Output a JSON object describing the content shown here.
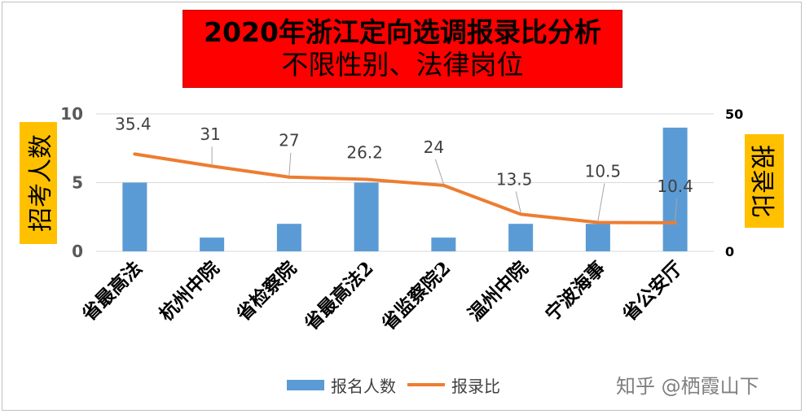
{
  "title_lines": [
    "2020年浙江定向选调报录比分析",
    "不限性别、法律岗位"
  ],
  "left_axis_title": "招考人数",
  "right_axis_title": "报录比",
  "watermark": "知乎 @栖霞山下",
  "colors": {
    "bar": "#5b9bd5",
    "line": "#ed7d31",
    "title_bg": "#ff0000",
    "axis_title_bg": "#ffc000"
  },
  "chart_data": {
    "type": "bar+line",
    "categories": [
      "省最高法",
      "杭州中院",
      "省检察院",
      "省最高法2",
      "省监察院2",
      "温州中院",
      "宁波海事",
      "省公安厅"
    ],
    "series": [
      {
        "name": "报名人数",
        "type": "bar",
        "axis": "left",
        "values": [
          5,
          1,
          2,
          5,
          1,
          2,
          2,
          9
        ]
      },
      {
        "name": "报录比",
        "type": "line",
        "axis": "right",
        "values": [
          35.4,
          31,
          27,
          26.2,
          24,
          13.5,
          10.5,
          10.4
        ],
        "labels": [
          "35.4",
          "31",
          "27",
          "26.2",
          "24",
          "13.5",
          "10.5",
          "10.4"
        ]
      }
    ],
    "left_axis": {
      "ylim": [
        0,
        10
      ],
      "ticks": [
        "0",
        "5",
        "10"
      ]
    },
    "right_axis": {
      "ylim": [
        0,
        50
      ],
      "ticks": [
        "0",
        "50"
      ]
    },
    "grid": true,
    "legend_position": "bottom"
  }
}
